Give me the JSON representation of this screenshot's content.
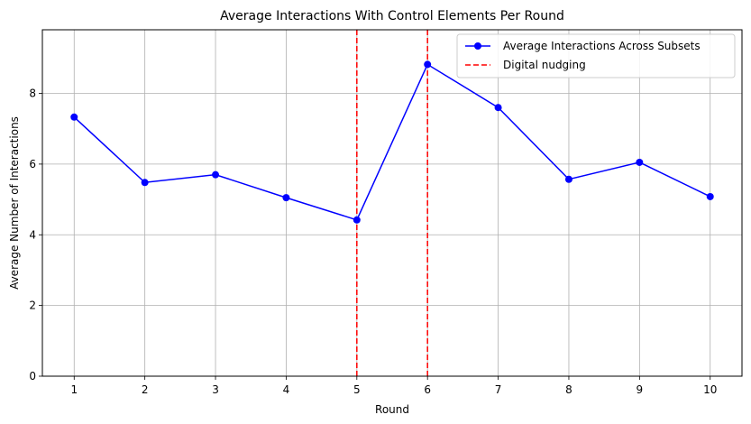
{
  "chart_data": {
    "type": "line",
    "title": "Average Interactions With Control Elements Per Round",
    "xlabel": "Round",
    "ylabel": "Average Number of Interactions",
    "x": [
      1,
      2,
      3,
      4,
      5,
      6,
      7,
      8,
      9,
      10
    ],
    "xlim": [
      0.55,
      10.45
    ],
    "ylim": [
      0,
      9.8
    ],
    "xticks": [
      1,
      2,
      3,
      4,
      5,
      6,
      7,
      8,
      9,
      10
    ],
    "yticks": [
      0,
      2,
      4,
      6,
      8
    ],
    "grid": true,
    "legend_position": "top-right",
    "series": [
      {
        "name": "Average Interactions Across Subsets",
        "values": [
          7.33,
          5.48,
          5.7,
          5.05,
          4.42,
          8.82,
          7.6,
          5.57,
          6.05,
          5.08
        ],
        "color": "#0000ff",
        "marker": "circle",
        "line_style": "solid"
      }
    ],
    "vlines": [
      {
        "name": "Digital nudging",
        "x": [
          5,
          6
        ],
        "color": "#ff0000",
        "line_style": "dashed"
      }
    ]
  }
}
